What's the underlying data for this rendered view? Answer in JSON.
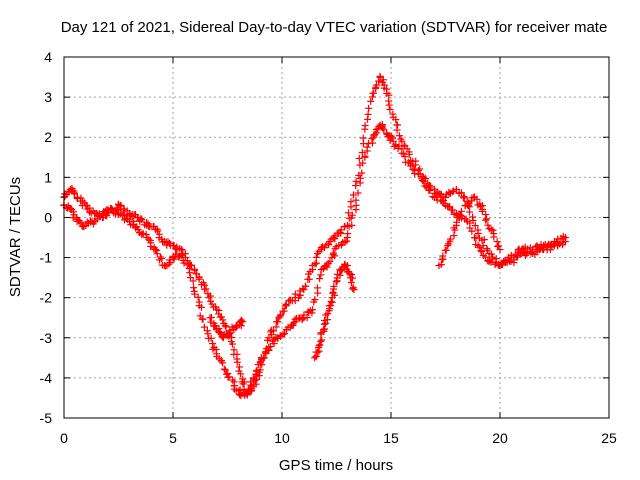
{
  "chart_data": {
    "type": "scatter",
    "title": "Day 121 of 2021, Sidereal Day-to-day VTEC variation (SDTVAR) for receiver mate",
    "xlabel": "GPS time / hours",
    "ylabel": "SDTVAR / TECUs",
    "xlim": [
      0,
      25
    ],
    "ylim": [
      -5,
      4
    ],
    "x_ticks": [
      0,
      5,
      10,
      15,
      20,
      25
    ],
    "y_ticks": [
      -5,
      -4,
      -3,
      -2,
      -1,
      0,
      1,
      2,
      3,
      4
    ],
    "grid": true,
    "marker": "+",
    "color": "#ff0000",
    "series": [
      {
        "name": "track-main-upper",
        "x": [
          0.0,
          0.3,
          0.6,
          1.0,
          1.4,
          1.8,
          2.2,
          2.6,
          3.0,
          3.4,
          3.8,
          4.2,
          4.6,
          5.0,
          5.4,
          5.8,
          6.2,
          6.6,
          7.0,
          7.4,
          7.8,
          8.1,
          8.4,
          8.7,
          9.0,
          9.4,
          9.8,
          10.2,
          10.6,
          11.0,
          11.4,
          11.8,
          12.2,
          12.6,
          13.0,
          13.4,
          13.8,
          14.2,
          14.5,
          14.8,
          15.1,
          15.5,
          16.0,
          16.5,
          17.0,
          17.5,
          18.0,
          18.5,
          19.0,
          19.5,
          20.0,
          20.5,
          21.0,
          21.5,
          22.0,
          22.5,
          23.0
        ],
        "y": [
          0.5,
          0.7,
          0.5,
          0.3,
          0.1,
          0.0,
          0.2,
          0.3,
          0.1,
          0.0,
          -0.2,
          -0.3,
          -0.6,
          -0.7,
          -0.8,
          -1.2,
          -1.5,
          -1.9,
          -2.3,
          -2.7,
          -3.3,
          -3.9,
          -4.4,
          -4.2,
          -3.8,
          -3.0,
          -2.6,
          -2.2,
          -2.0,
          -1.8,
          -1.3,
          -0.8,
          -0.6,
          -0.4,
          -0.2,
          0.9,
          2.2,
          3.1,
          3.5,
          3.2,
          2.5,
          1.9,
          1.4,
          1.0,
          0.6,
          0.5,
          0.7,
          0.4,
          -0.4,
          -0.9,
          -1.2,
          -1.0,
          -0.8,
          -0.8,
          -0.7,
          -0.6,
          -0.5
        ]
      },
      {
        "name": "track-main-lower",
        "x": [
          0.0,
          0.3,
          0.6,
          1.0,
          1.4,
          1.8,
          2.2,
          2.6,
          3.0,
          3.4,
          3.8,
          4.2,
          4.6,
          5.0,
          5.4,
          5.8,
          6.2,
          6.6,
          7.0,
          7.4,
          7.8,
          8.1,
          8.4,
          8.7,
          9.0,
          9.4,
          9.8,
          10.2,
          10.6,
          11.0,
          11.4,
          11.8,
          12.2,
          12.6,
          13.0,
          13.4,
          13.8,
          14.2,
          14.5,
          14.8,
          15.1,
          15.5,
          16.0,
          16.5,
          17.0,
          17.5,
          18.0,
          18.5,
          19.0,
          19.5,
          20.0,
          20.5,
          21.0,
          21.5,
          22.0,
          22.5,
          23.0
        ],
        "y": [
          0.3,
          0.2,
          -0.1,
          -0.2,
          -0.1,
          0.1,
          0.2,
          0.1,
          -0.1,
          -0.3,
          -0.5,
          -0.8,
          -1.2,
          -1.0,
          -0.9,
          -1.5,
          -2.2,
          -2.9,
          -3.4,
          -3.8,
          -4.2,
          -4.4,
          -4.4,
          -4.0,
          -3.6,
          -3.3,
          -3.0,
          -2.8,
          -2.6,
          -2.5,
          -2.3,
          -1.3,
          -1.1,
          -0.7,
          -0.5,
          0.3,
          1.5,
          2.0,
          2.3,
          2.1,
          1.9,
          1.6,
          1.2,
          0.9,
          0.5,
          0.3,
          0.1,
          -0.1,
          -0.7,
          -1.1,
          -1.2,
          -1.1,
          -0.9,
          -0.9,
          -0.8,
          -0.7,
          -0.6
        ]
      },
      {
        "name": "track-arc-early",
        "x": [
          6.7,
          7.0,
          7.3,
          7.6,
          7.9,
          8.2
        ],
        "y": [
          -2.5,
          -2.8,
          -3.0,
          -2.9,
          -2.7,
          -2.6
        ]
      },
      {
        "name": "track-arc-midday",
        "x": [
          11.5,
          11.7,
          11.9,
          12.1,
          12.3,
          12.5,
          12.7,
          12.9,
          13.1,
          13.3
        ],
        "y": [
          -3.5,
          -3.2,
          -2.8,
          -2.4,
          -2.0,
          -1.6,
          -1.3,
          -1.2,
          -1.4,
          -1.8
        ]
      },
      {
        "name": "track-arc-evening",
        "x": [
          17.2,
          17.6,
          18.0,
          18.4,
          18.8,
          19.2,
          19.6,
          20.0
        ],
        "y": [
          -1.2,
          -0.7,
          -0.2,
          0.3,
          0.5,
          0.2,
          -0.3,
          -0.8
        ]
      }
    ]
  }
}
